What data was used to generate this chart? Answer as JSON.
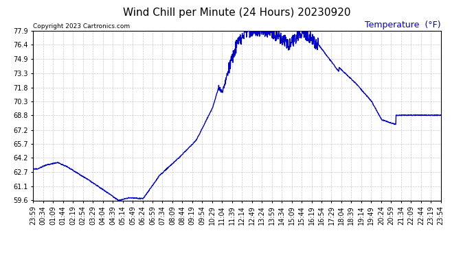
{
  "title": "Wind Chill per Minute (24 Hours) 20230920",
  "ylabel": "Temperature  (°F)",
  "copyright_text": "Copyright 2023 Cartronics.com",
  "line_color": "#0000cc",
  "ylabel_color": "#0000cc",
  "background_color": "#ffffff",
  "plot_bg_color": "#ffffff",
  "grid_color": "#bbbbbb",
  "yticks": [
    59.6,
    61.1,
    62.7,
    64.2,
    65.7,
    67.2,
    68.8,
    70.3,
    71.8,
    73.3,
    74.9,
    76.4,
    77.9
  ],
  "ylim": [
    59.6,
    77.9
  ],
  "x_labels": [
    "23:59",
    "00:34",
    "01:09",
    "01:44",
    "02:19",
    "02:54",
    "03:29",
    "04:04",
    "04:39",
    "05:14",
    "05:49",
    "06:24",
    "06:59",
    "07:34",
    "08:09",
    "08:44",
    "09:19",
    "09:54",
    "10:29",
    "11:04",
    "11:39",
    "12:14",
    "12:49",
    "13:24",
    "13:59",
    "14:34",
    "15:09",
    "15:44",
    "16:19",
    "16:54",
    "17:29",
    "18:04",
    "18:39",
    "19:14",
    "19:49",
    "20:24",
    "20:59",
    "21:34",
    "22:09",
    "22:44",
    "23:19",
    "23:54"
  ],
  "title_fontsize": 11,
  "tick_fontsize": 7,
  "ylabel_fontsize": 9,
  "copyright_fontsize": 6.5,
  "line_width": 1.0
}
